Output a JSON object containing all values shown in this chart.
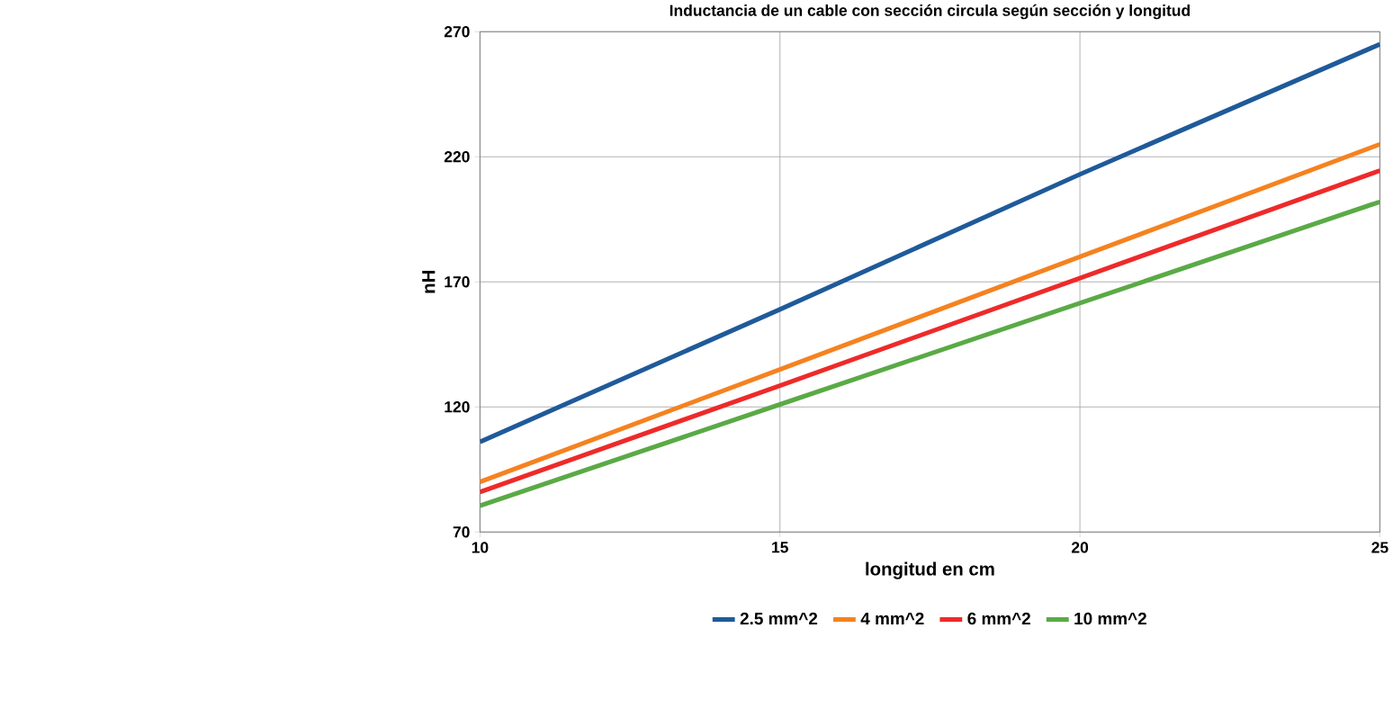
{
  "chart_data": {
    "type": "line",
    "title": "Inductancia de un cable con sección circula según sección y longitud",
    "xlabel": "longitud en cm",
    "ylabel": "nH",
    "x": [
      10,
      15,
      20,
      25
    ],
    "series": [
      {
        "name": "2.5 mm^2",
        "color": "#1f5a9a",
        "values": [
          106,
          159,
          213,
          265
        ]
      },
      {
        "name": "4 mm^2",
        "color": "#f58220",
        "values": [
          90,
          135,
          180,
          225
        ]
      },
      {
        "name": "6 mm^2",
        "color": "#ee2a2a",
        "values": [
          86,
          128.5,
          171.5,
          214.5
        ]
      },
      {
        "name": "10 mm^2",
        "color": "#5aaa46",
        "values": [
          80.5,
          121,
          161.5,
          202
        ]
      }
    ],
    "xlim": [
      10,
      25
    ],
    "ylim": [
      70,
      270
    ],
    "xticks": [
      10,
      15,
      20,
      25
    ],
    "yticks": [
      70,
      120,
      170,
      220,
      270
    ],
    "grid": true,
    "legend": "bottom",
    "marker": "none"
  }
}
